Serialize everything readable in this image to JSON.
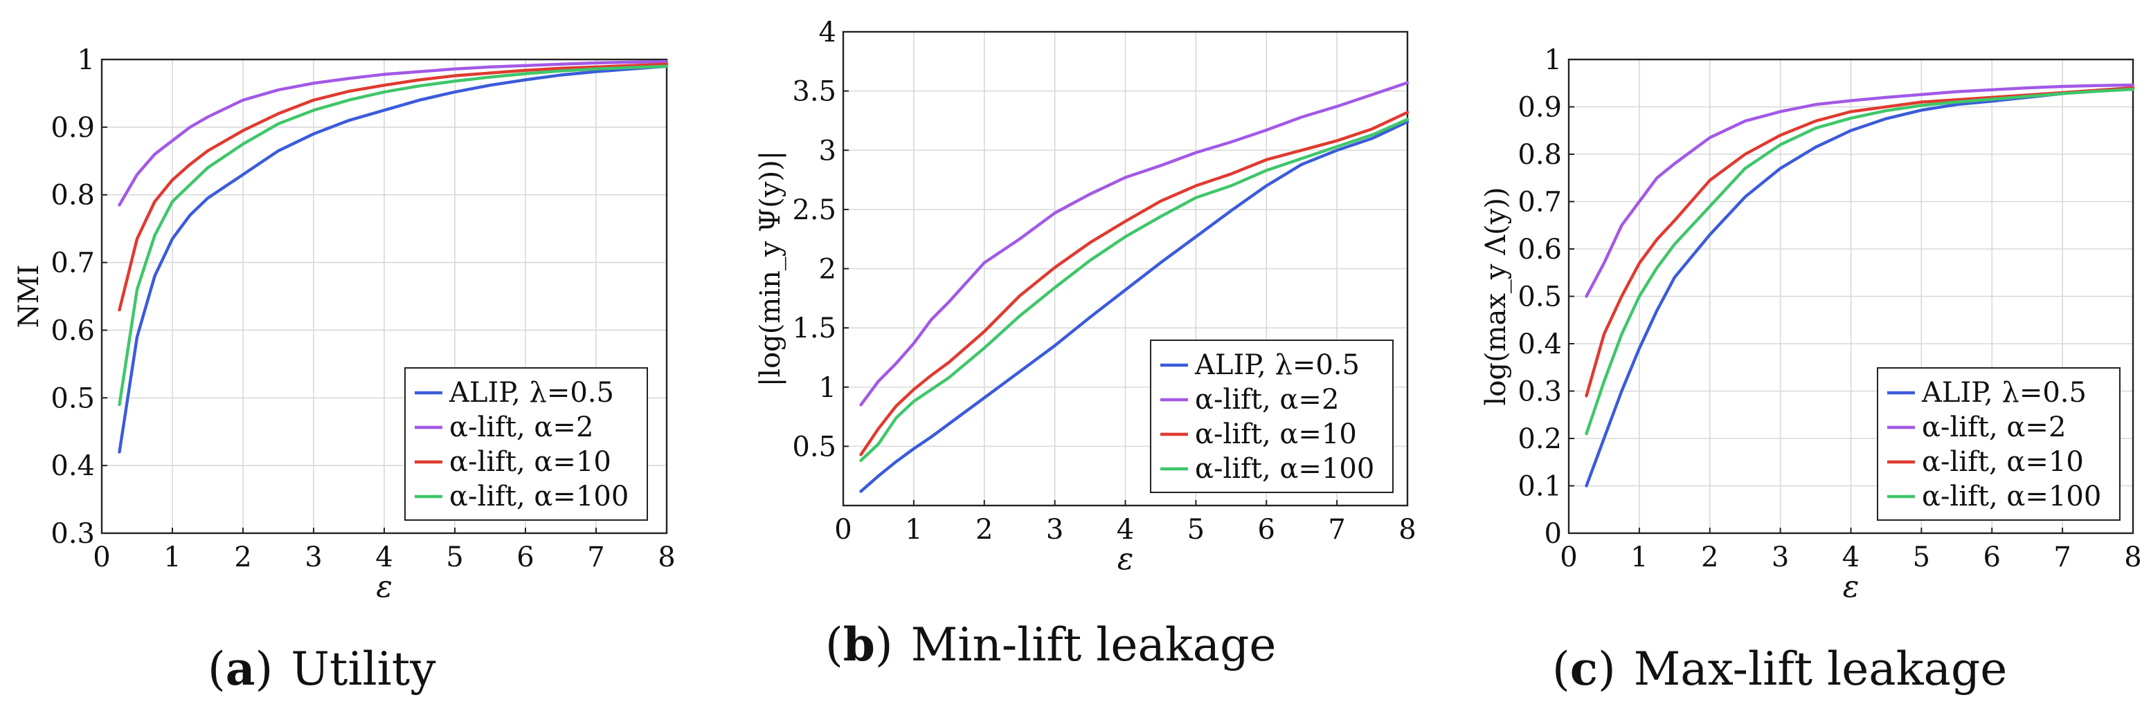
{
  "colors": {
    "ALIP": "#3b5bdb",
    "alpha2": "#a259e6",
    "alpha10": "#e03a2f",
    "alpha100": "#3fc66a"
  },
  "chart_data": [
    {
      "type": "line",
      "caption_letter": "a",
      "caption": "Utility",
      "xlabel": "ε",
      "ylabel": "NMI",
      "xlim": [
        0,
        8
      ],
      "ylim": [
        0.3,
        1
      ],
      "xticks": [
        0,
        1,
        2,
        3,
        4,
        5,
        6,
        7,
        8
      ],
      "yticks": [
        0.3,
        0.4,
        0.5,
        0.6,
        0.7,
        0.8,
        0.9,
        1
      ],
      "ytick_labels": [
        "0.3",
        "0.4",
        "0.5",
        "0.6",
        "0.7",
        "0.8",
        "0.9",
        "1"
      ],
      "grid": true,
      "legend_position": "bottom-right",
      "x": [
        0.25,
        0.5,
        0.75,
        1,
        1.25,
        1.5,
        2,
        2.5,
        3,
        3.5,
        4,
        4.5,
        5,
        5.5,
        6,
        6.5,
        7,
        7.5,
        8
      ],
      "series": [
        {
          "name": "ALIP, λ=0.5",
          "color_key": "ALIP",
          "values": [
            0.42,
            0.59,
            0.68,
            0.735,
            0.77,
            0.795,
            0.83,
            0.865,
            0.89,
            0.91,
            0.925,
            0.94,
            0.952,
            0.962,
            0.97,
            0.977,
            0.982,
            0.986,
            0.99
          ]
        },
        {
          "name": "α-lift, α=2",
          "color_key": "alpha2",
          "values": [
            0.785,
            0.83,
            0.86,
            0.88,
            0.9,
            0.915,
            0.94,
            0.955,
            0.965,
            0.972,
            0.978,
            0.982,
            0.986,
            0.989,
            0.991,
            0.993,
            0.995,
            0.996,
            0.997
          ]
        },
        {
          "name": "α-lift, α=10",
          "color_key": "alpha10",
          "values": [
            0.63,
            0.735,
            0.79,
            0.822,
            0.845,
            0.865,
            0.895,
            0.92,
            0.94,
            0.953,
            0.962,
            0.97,
            0.976,
            0.98,
            0.984,
            0.987,
            0.989,
            0.991,
            0.993
          ]
        },
        {
          "name": "α-lift, α=100",
          "color_key": "alpha100",
          "values": [
            0.49,
            0.66,
            0.74,
            0.79,
            0.815,
            0.84,
            0.875,
            0.905,
            0.925,
            0.94,
            0.952,
            0.961,
            0.968,
            0.974,
            0.979,
            0.983,
            0.986,
            0.988,
            0.99
          ]
        }
      ]
    },
    {
      "type": "line",
      "caption_letter": "b",
      "caption": "Min-lift leakage",
      "xlabel": "ε",
      "ylabel": "|log(min_y Ψ(y))|",
      "xlim": [
        0,
        8
      ],
      "ylim": [
        0,
        4
      ],
      "xticks": [
        0,
        1,
        2,
        3,
        4,
        5,
        6,
        7,
        8
      ],
      "yticks": [
        0.5,
        1,
        1.5,
        2,
        2.5,
        3,
        3.5,
        4
      ],
      "ytick_labels": [
        "0.5",
        "1",
        "1.5",
        "2",
        "2.5",
        "3",
        "3.5",
        "4"
      ],
      "grid": true,
      "legend_position": "bottom-right",
      "x": [
        0.25,
        0.5,
        0.75,
        1,
        1.25,
        1.5,
        2,
        2.5,
        3,
        3.5,
        4,
        4.5,
        5,
        5.5,
        6,
        6.5,
        7,
        7.5,
        8
      ],
      "series": [
        {
          "name": "ALIP, λ=0.5",
          "color_key": "ALIP",
          "values": [
            0.12,
            0.25,
            0.37,
            0.48,
            0.58,
            0.69,
            0.91,
            1.13,
            1.35,
            1.59,
            1.82,
            2.05,
            2.27,
            2.49,
            2.7,
            2.88,
            3.0,
            3.1,
            3.24
          ]
        },
        {
          "name": "α-lift, α=2",
          "color_key": "alpha2",
          "values": [
            0.85,
            1.05,
            1.2,
            1.37,
            1.57,
            1.72,
            2.05,
            2.25,
            2.47,
            2.63,
            2.77,
            2.87,
            2.98,
            3.07,
            3.17,
            3.28,
            3.37,
            3.47,
            3.57
          ]
        },
        {
          "name": "α-lift, α=10",
          "color_key": "alpha10",
          "values": [
            0.43,
            0.65,
            0.84,
            0.98,
            1.1,
            1.21,
            1.47,
            1.77,
            2.01,
            2.22,
            2.4,
            2.57,
            2.7,
            2.8,
            2.92,
            3.0,
            3.08,
            3.18,
            3.32
          ]
        },
        {
          "name": "α-lift, α=100",
          "color_key": "alpha100",
          "values": [
            0.38,
            0.52,
            0.74,
            0.88,
            0.98,
            1.08,
            1.33,
            1.6,
            1.84,
            2.07,
            2.27,
            2.44,
            2.6,
            2.7,
            2.83,
            2.93,
            3.03,
            3.13,
            3.26
          ]
        }
      ]
    },
    {
      "type": "line",
      "caption_letter": "c",
      "caption": "Max-lift leakage",
      "xlabel": "ε",
      "ylabel": "log(max_y Λ(y))",
      "xlim": [
        0,
        8
      ],
      "ylim": [
        0,
        1
      ],
      "xticks": [
        0,
        1,
        2,
        3,
        4,
        5,
        6,
        7,
        8
      ],
      "yticks": [
        0,
        0.1,
        0.2,
        0.3,
        0.4,
        0.5,
        0.6,
        0.7,
        0.8,
        0.9,
        1
      ],
      "ytick_labels": [
        "0",
        "0.1",
        "0.2",
        "0.3",
        "0.4",
        "0.5",
        "0.6",
        "0.7",
        "0.8",
        "0.9",
        "1"
      ],
      "grid": true,
      "legend_position": "bottom-right",
      "x": [
        0.25,
        0.5,
        0.75,
        1,
        1.25,
        1.5,
        2,
        2.5,
        3,
        3.5,
        4,
        4.5,
        5,
        5.5,
        6,
        6.5,
        7,
        7.5,
        8
      ],
      "series": [
        {
          "name": "ALIP, λ=0.5",
          "color_key": "ALIP",
          "values": [
            0.1,
            0.2,
            0.3,
            0.39,
            0.47,
            0.54,
            0.63,
            0.71,
            0.77,
            0.815,
            0.85,
            0.875,
            0.893,
            0.905,
            0.912,
            0.92,
            0.928,
            0.935,
            0.94
          ]
        },
        {
          "name": "α-lift, α=2",
          "color_key": "alpha2",
          "values": [
            0.5,
            0.57,
            0.65,
            0.7,
            0.75,
            0.78,
            0.835,
            0.87,
            0.89,
            0.905,
            0.913,
            0.92,
            0.926,
            0.932,
            0.936,
            0.94,
            0.943,
            0.945,
            0.946
          ]
        },
        {
          "name": "α-lift, α=10",
          "color_key": "alpha10",
          "values": [
            0.29,
            0.42,
            0.5,
            0.57,
            0.62,
            0.66,
            0.745,
            0.8,
            0.84,
            0.87,
            0.89,
            0.9,
            0.91,
            0.915,
            0.92,
            0.925,
            0.93,
            0.935,
            0.94
          ]
        },
        {
          "name": "α-lift, α=100",
          "color_key": "alpha100",
          "values": [
            0.21,
            0.32,
            0.42,
            0.5,
            0.56,
            0.61,
            0.69,
            0.77,
            0.82,
            0.855,
            0.876,
            0.892,
            0.903,
            0.91,
            0.916,
            0.922,
            0.928,
            0.933,
            0.937
          ]
        }
      ]
    }
  ]
}
